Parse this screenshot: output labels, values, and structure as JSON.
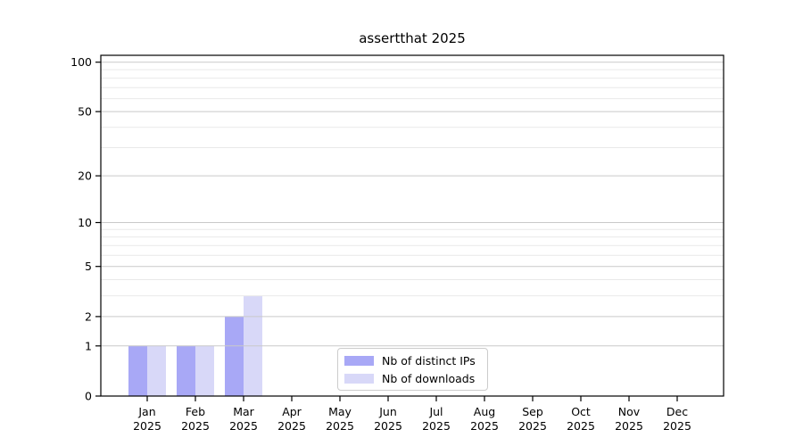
{
  "title": "assertthat 2025",
  "chart_data": {
    "type": "bar",
    "title": "assertthat 2025",
    "categories": [
      "Jan",
      "Feb",
      "Mar",
      "Apr",
      "May",
      "Jun",
      "Jul",
      "Aug",
      "Sep",
      "Oct",
      "Nov",
      "Dec"
    ],
    "category_year": "2025",
    "series": [
      {
        "name": "Nb of distinct IPs",
        "color": "#a8a8f6",
        "values": [
          1,
          1,
          2,
          0,
          0,
          0,
          0,
          0,
          0,
          0,
          0,
          0
        ]
      },
      {
        "name": "Nb of downloads",
        "color": "#d8d8f8",
        "values": [
          1,
          1,
          3,
          0,
          0,
          0,
          0,
          0,
          0,
          0,
          0,
          0
        ]
      }
    ],
    "yaxis": {
      "scale": "log1p",
      "major_ticks": [
        0,
        1,
        2,
        5,
        10,
        20,
        50,
        100
      ],
      "minor_ticks": [
        3,
        4,
        6,
        7,
        8,
        9,
        30,
        40,
        60,
        70,
        80,
        90
      ],
      "max": 110
    },
    "xlabel": "",
    "ylabel": "",
    "grid": true,
    "legend_position": "lower center"
  },
  "colors": {
    "major_grid": "#c9c9c9",
    "minor_grid": "#e9e9e9",
    "spine": "#000000",
    "tick": "#000000",
    "background": "#ffffff",
    "legend_border": "#cccccc"
  }
}
